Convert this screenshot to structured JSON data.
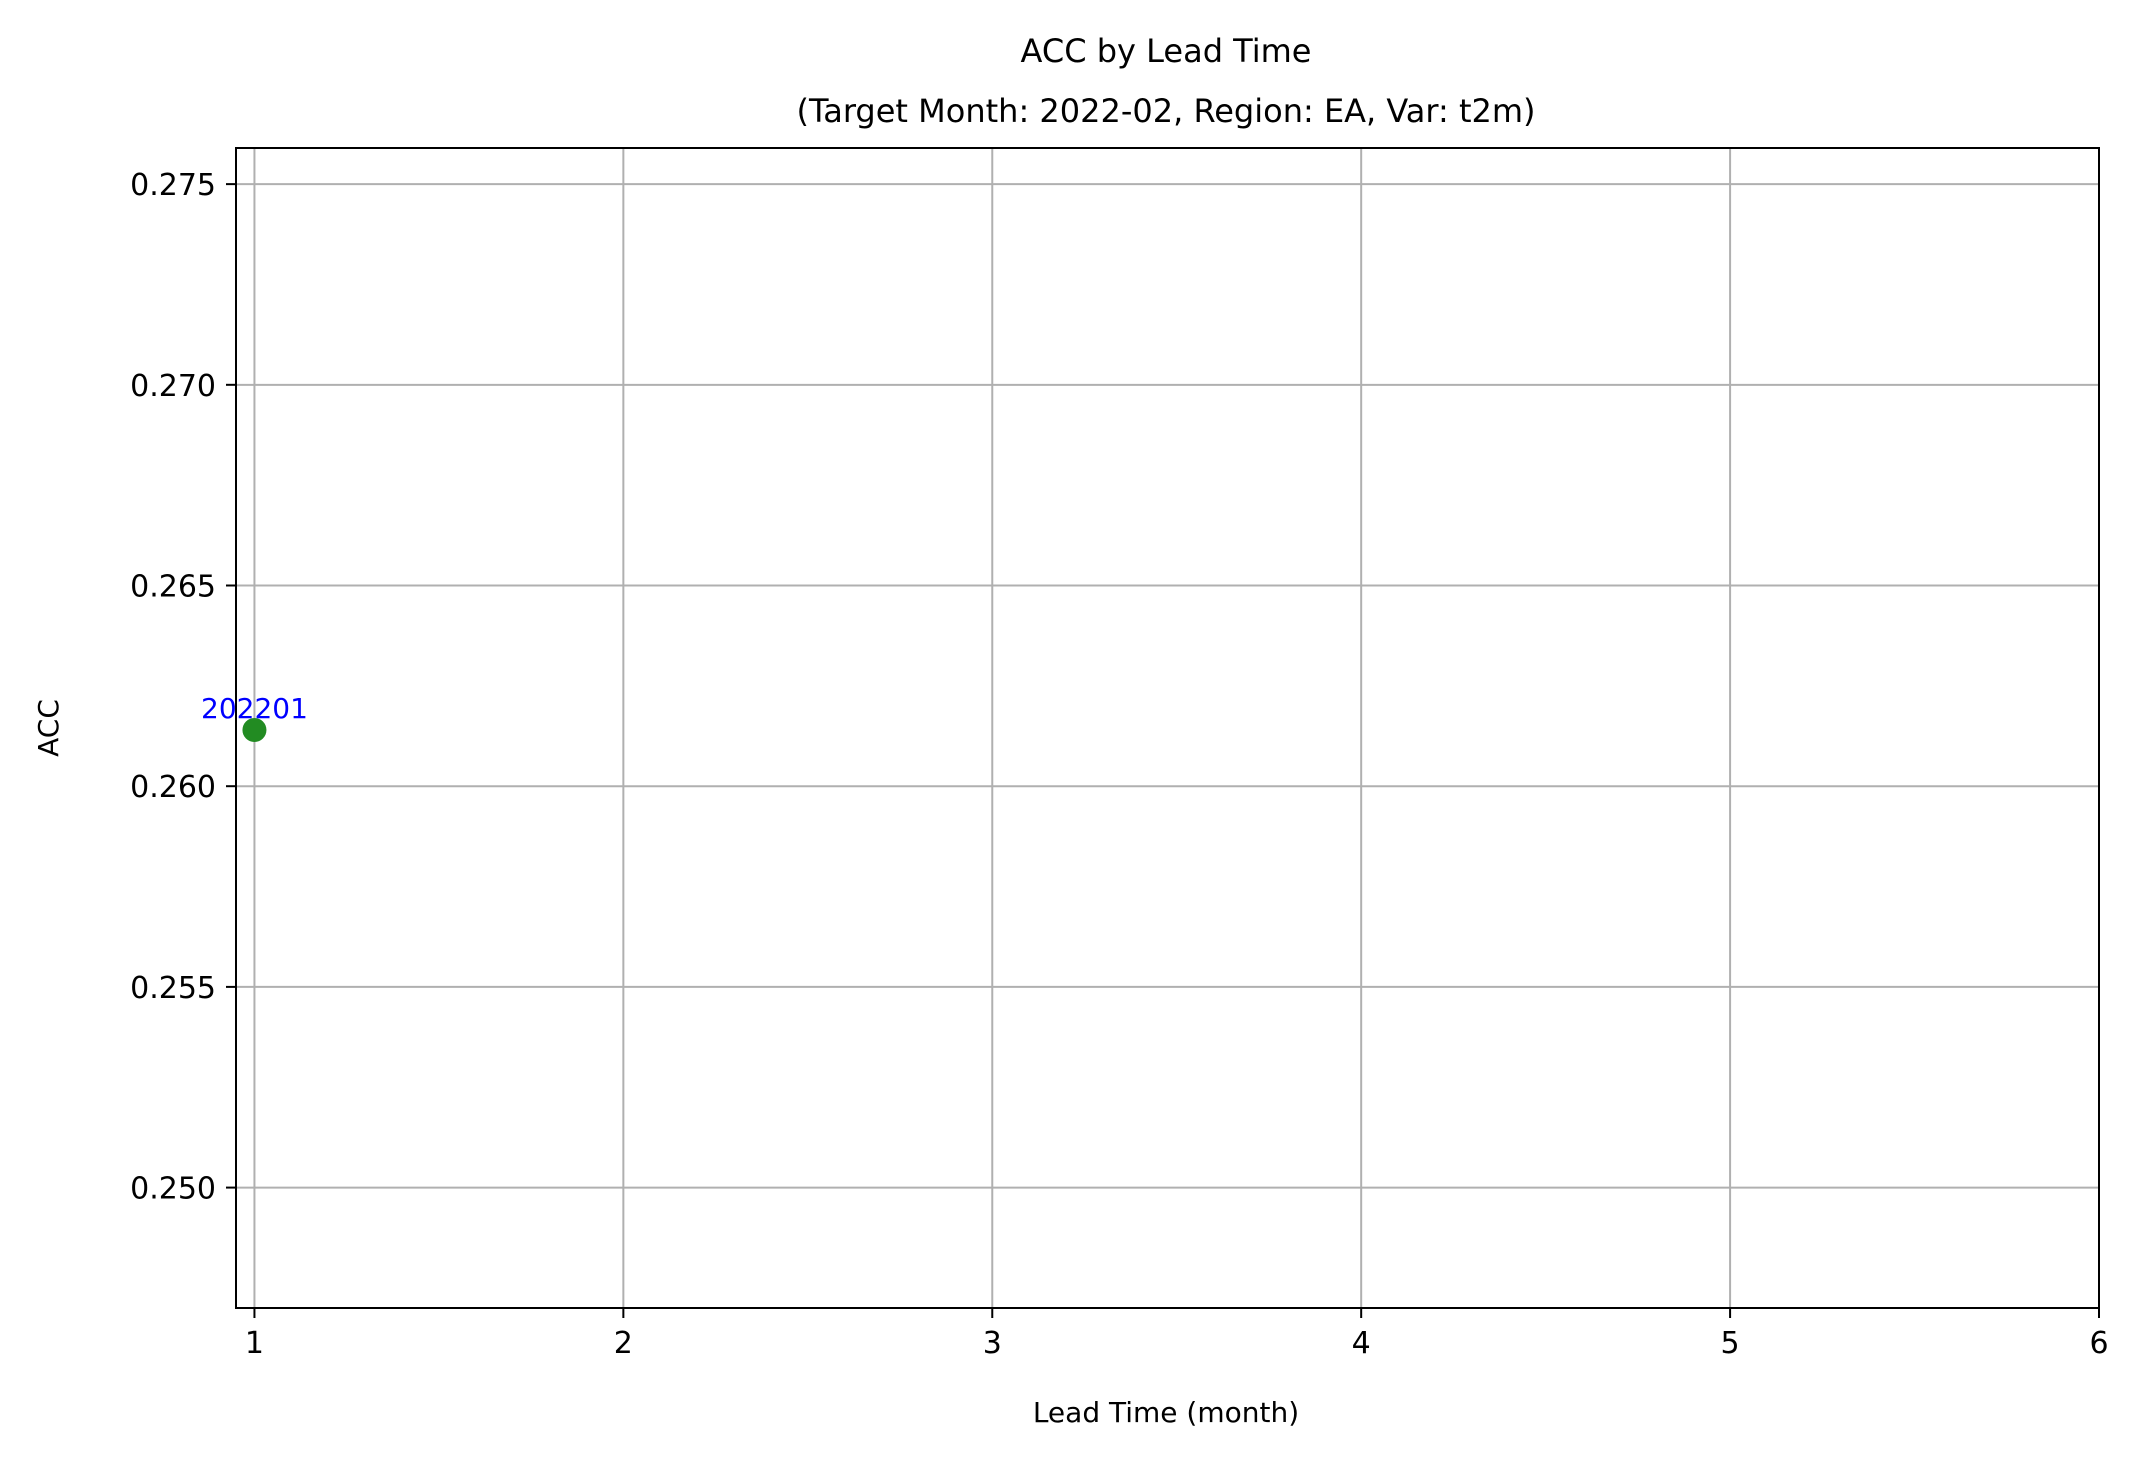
{
  "chart_data": {
    "type": "scatter",
    "title": "ACC by Lead Time",
    "subtitle": "(Target Month: 2022-02, Region: EA, Var: t2m)",
    "xlabel": "Lead Time (month)",
    "ylabel": "ACC",
    "xlim": [
      0.95,
      6.0
    ],
    "ylim": [
      0.247,
      0.2759
    ],
    "x_ticks": [
      1,
      2,
      3,
      4,
      5,
      6
    ],
    "y_ticks": [
      0.25,
      0.255,
      0.26,
      0.265,
      0.27,
      0.275
    ],
    "y_tick_labels": [
      "0.250",
      "0.255",
      "0.260",
      "0.265",
      "0.270",
      "0.275"
    ],
    "grid": true,
    "points": [
      {
        "x": 1,
        "y": 0.2614,
        "label": "202201"
      }
    ],
    "colors": {
      "point": "#228b22",
      "point_label": "#0000ff",
      "grid": "#b0b0b0",
      "axes": "#000000"
    }
  }
}
